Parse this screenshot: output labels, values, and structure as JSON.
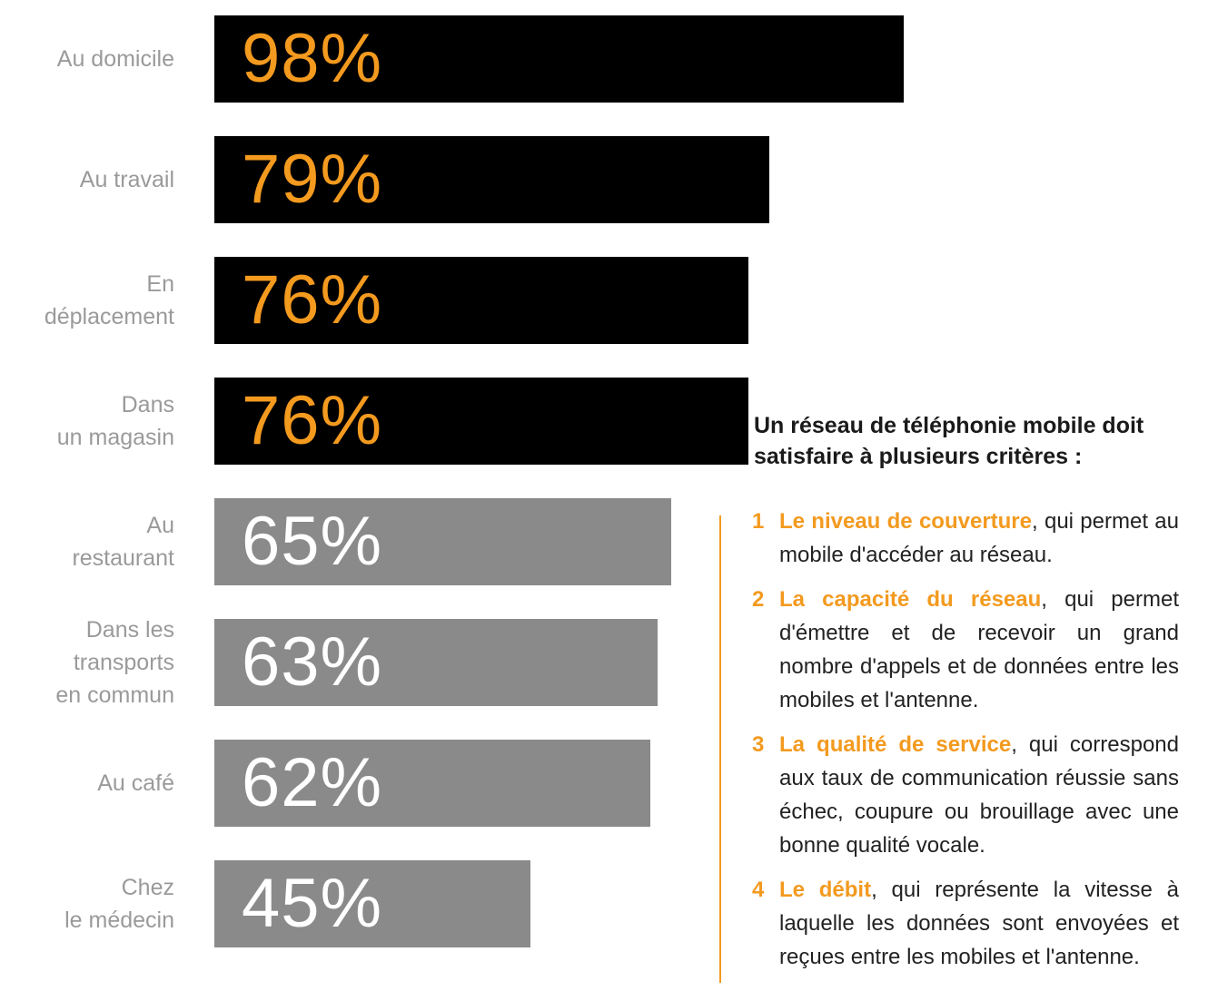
{
  "chart_data": {
    "type": "bar",
    "orientation": "horizontal",
    "categories": [
      "Au domicile",
      "Au travail",
      "En\ndéplacement",
      "Dans\nun magasin",
      "Au\nrestaurant",
      "Dans les\ntransports\nen commun",
      "Au café",
      "Chez\nle médecin"
    ],
    "values": [
      98,
      79,
      76,
      76,
      65,
      63,
      62,
      45
    ],
    "value_labels": [
      "98%",
      "79%",
      "76%",
      "76%",
      "65%",
      "63%",
      "62%",
      "45%"
    ],
    "xlim": [
      0,
      100
    ],
    "bar_colors": [
      "#000000",
      "#000000",
      "#000000",
      "#000000",
      "#8a8a8a",
      "#8a8a8a",
      "#8a8a8a",
      "#8a8a8a"
    ],
    "value_label_colors": [
      "#f39a1f",
      "#f39a1f",
      "#f39a1f",
      "#f39a1f",
      "#ffffff",
      "#ffffff",
      "#ffffff",
      "#ffffff"
    ],
    "grid": false,
    "legend": "none"
  },
  "criteria": {
    "title": "Un réseau de téléphonie mobile doit satisfaire  à plusieurs critères :",
    "accent_color": "#f39a1f",
    "items": [
      {
        "num": "1",
        "head": "Le niveau de couverture",
        "text": ", qui permet au mobile d'accéder au réseau."
      },
      {
        "num": "2",
        "head": "La capacité du réseau",
        "text": ", qui permet d'émettre et de recevoir un grand nombre d'appels et de données entre les mobiles et l'antenne."
      },
      {
        "num": "3",
        "head": "La qualité de service",
        "text": ", qui correspond aux taux de communication réussie sans échec, coupure ou brouillage avec une bonne qualité vocale."
      },
      {
        "num": "4",
        "head": "Le débit",
        "text": ", qui représente la vitesse à laquelle les données sont envoyées et reçues entre les mobiles et l'antenne."
      }
    ]
  }
}
